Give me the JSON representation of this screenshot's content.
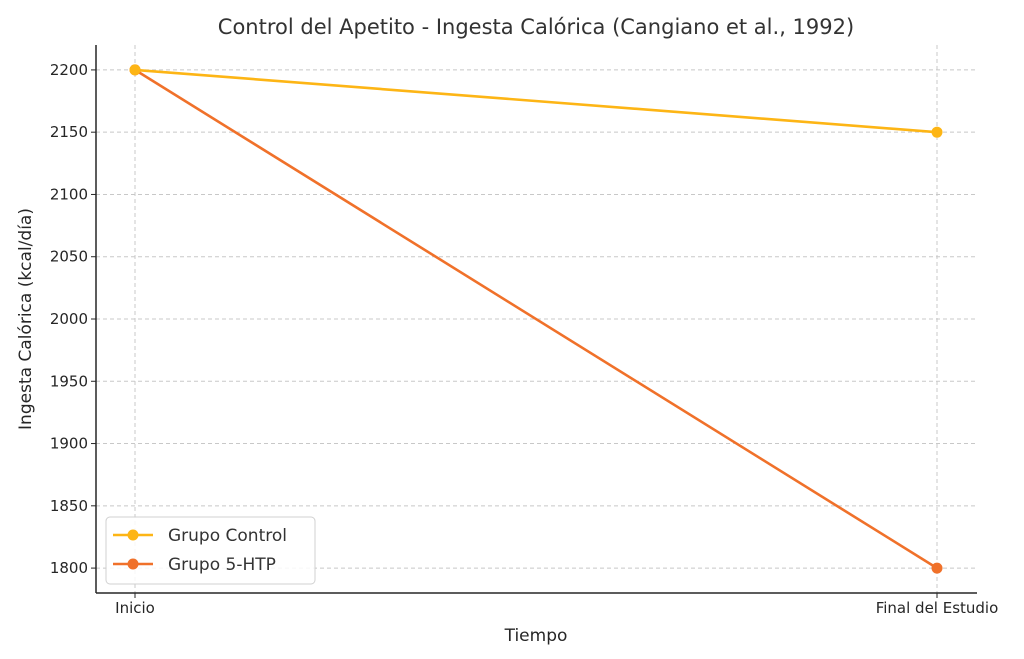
{
  "chart_data": {
    "type": "line",
    "title": "Control del Apetito - Ingesta Calórica (Cangiano et al., 1992)",
    "xlabel": "Tiempo",
    "ylabel": "Ingesta Calórica (kcal/día)",
    "categories": [
      "Inicio",
      "Final del Estudio"
    ],
    "ylim": [
      1780,
      2220
    ],
    "yticks": [
      1800,
      1850,
      1900,
      1950,
      2000,
      2050,
      2100,
      2150,
      2200
    ],
    "grid": true,
    "legend_position": "bottom-left",
    "series": [
      {
        "name": "Grupo Control",
        "values": [
          2200,
          2150
        ],
        "color": "#FDB515"
      },
      {
        "name": "Grupo 5-HTP",
        "values": [
          2200,
          1800
        ],
        "color": "#F0712A"
      }
    ]
  }
}
